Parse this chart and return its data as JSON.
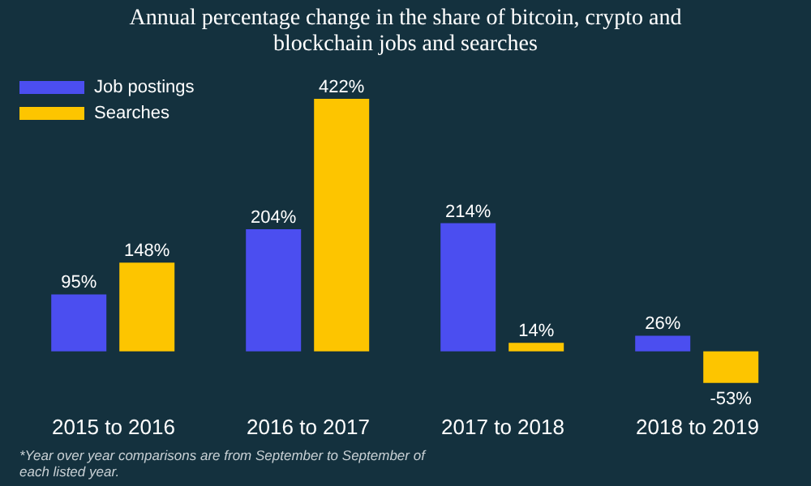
{
  "chart_data": {
    "type": "bar",
    "title": "Annual percentage change in the share of bitcoin, crypto and blockchain jobs and searches",
    "categories": [
      "2015 to 2016",
      "2016 to 2017",
      "2017 to 2018",
      "2018 to 2019"
    ],
    "series": [
      {
        "name": "Job postings",
        "color": "#4b4ef0",
        "values": [
          95,
          204,
          214,
          26
        ],
        "value_labels": [
          "95%",
          "204%",
          "214%",
          "26%"
        ]
      },
      {
        "name": "Searches",
        "color": "#fdc500",
        "values": [
          148,
          422,
          14,
          -53
        ],
        "value_labels": [
          "148%",
          "422%",
          "14%",
          "-53%"
        ]
      }
    ],
    "ylim": [
      -60,
      430
    ],
    "tick_labels": "x",
    "legend": "top left",
    "annotations": [
      "*Year over year comparisons are from September to September of each listed year."
    ]
  }
}
